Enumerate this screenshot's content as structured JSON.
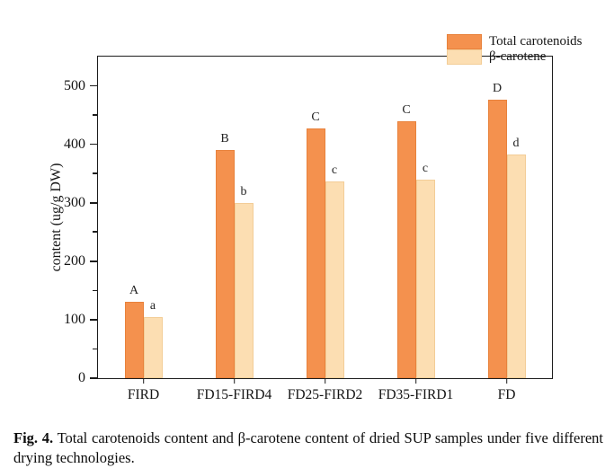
{
  "figure": {
    "caption_label": "Fig. 4.",
    "caption_text": " Total carotenoids content and β-carotene content of dried SUP samples under five different drying technologies."
  },
  "chart_data": {
    "type": "bar",
    "title": "",
    "xlabel": "",
    "ylabel": "content (ug/g DW)",
    "ylim": [
      0,
      550
    ],
    "y_major_ticks": [
      0,
      100,
      200,
      300,
      400,
      500
    ],
    "y_minor_step": 50,
    "grid": false,
    "legend_position": "top-right",
    "categories": [
      "FIRD",
      "FD15-FIRD4",
      "FD25-FIRD2",
      "FD35-FIRD1",
      "FD"
    ],
    "series": [
      {
        "name": "Total carotenoids",
        "color": "#f4914e",
        "edge_color": "#e8823c",
        "values": [
          130,
          390,
          427,
          440,
          477
        ],
        "letters": [
          "A",
          "B",
          "C",
          "C",
          "D"
        ]
      },
      {
        "name": "β-carotene",
        "color": "#fcdeb2",
        "edge_color": "#f3cd97",
        "values": [
          105,
          300,
          337,
          340,
          382
        ],
        "letters": [
          "a",
          "b",
          "c",
          "c",
          "d"
        ]
      }
    ]
  },
  "colors": {
    "axis": "#1c1c1c",
    "background": "#ffffff"
  }
}
